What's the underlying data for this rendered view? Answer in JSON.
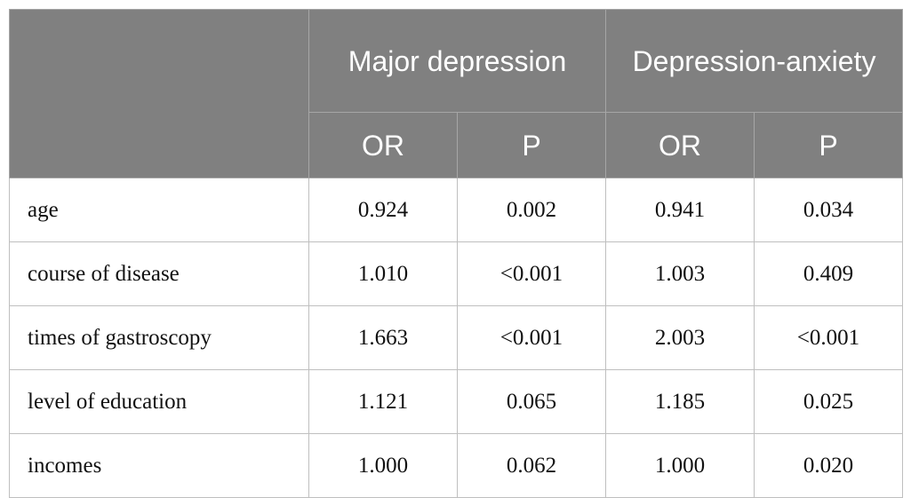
{
  "header": {
    "group1": "Major depression",
    "group2": "Depression-anxiety",
    "sub": [
      "OR",
      "P",
      "OR",
      "P"
    ]
  },
  "rows": [
    {
      "label": "age",
      "values": [
        "0.924",
        "0.002",
        "0.941",
        "0.034"
      ]
    },
    {
      "label": "course of disease",
      "values": [
        "1.010",
        "<0.001",
        "1.003",
        "0.409"
      ]
    },
    {
      "label": "times of gastroscopy",
      "values": [
        "1.663",
        "<0.001",
        "2.003",
        "<0.001"
      ]
    },
    {
      "label": "level of education",
      "values": [
        "1.121",
        "0.065",
        "1.185",
        "0.025"
      ]
    },
    {
      "label": "incomes",
      "values": [
        "1.000",
        "0.062",
        "1.000",
        "0.020"
      ]
    }
  ],
  "colors": {
    "header_bg": "#808080",
    "header_text": "#ffffff",
    "grid": "#bfbfbf"
  }
}
